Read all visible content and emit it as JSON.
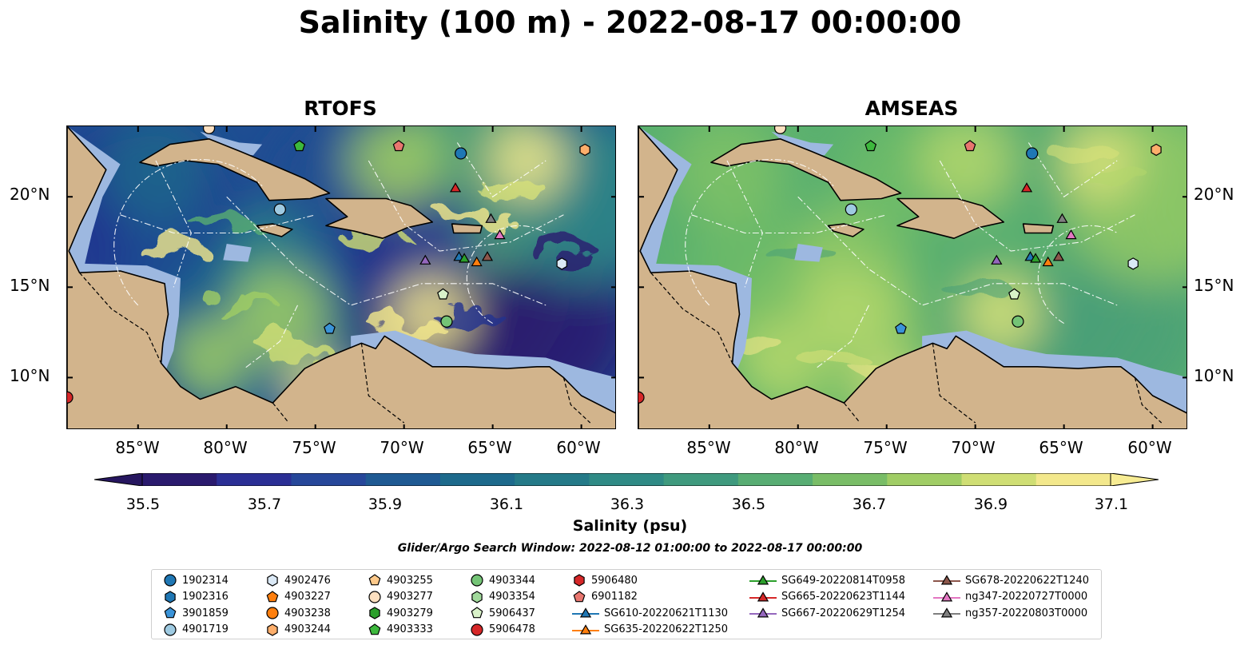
{
  "title": "Salinity (100 m) - 2022-08-17 00:00:00",
  "panels": [
    {
      "title": "RTOFS",
      "palette": "rtofs"
    },
    {
      "title": "AMSEAS",
      "palette": "amseas"
    }
  ],
  "lat_labels": [
    "20°N",
    "15°N",
    "10°N"
  ],
  "lon_labels": [
    "85°W",
    "80°W",
    "75°W",
    "70°W",
    "65°W",
    "60°W"
  ],
  "colorbar": {
    "label": "Salinity (psu)",
    "ticks": [
      "35.5",
      "35.7",
      "35.9",
      "36.1",
      "36.3",
      "36.5",
      "36.7",
      "36.9",
      "37.1"
    ],
    "colors": [
      "#2a1a6e",
      "#2b2f95",
      "#26479a",
      "#1f5a93",
      "#1d6a8c",
      "#247a88",
      "#2f8a85",
      "#3f9a7e",
      "#58ad73",
      "#79bd67",
      "#a0cd65",
      "#cfde74",
      "#f3e88c"
    ],
    "extend_low_color": "#26165f",
    "extend_high_color": "#f7ec93"
  },
  "search_window": "Glider/Argo Search Window: 2022-08-12 01:00:00 to 2022-08-17 00:00:00",
  "colors": {
    "land": "#d2b48c",
    "shallow_water": "#9db8e0"
  },
  "legend": [
    {
      "label": "1902314",
      "marker": "circle",
      "color": "#1f77b4"
    },
    {
      "label": "1902316",
      "marker": "hexagon",
      "color": "#1f77b4"
    },
    {
      "label": "3901859",
      "marker": "pentagon",
      "color": "#3a93d8"
    },
    {
      "label": "4901719",
      "marker": "circle",
      "color": "#9ecae1"
    },
    {
      "label": "4902476",
      "marker": "hexagon",
      "color": "#dbe9f6"
    },
    {
      "label": "4903227",
      "marker": "pentagon",
      "color": "#ff7f0e"
    },
    {
      "label": "4903238",
      "marker": "circle",
      "color": "#ff7f0e"
    },
    {
      "label": "4903244",
      "marker": "hexagon",
      "color": "#fdae6b"
    },
    {
      "label": "4903255",
      "marker": "pentagon",
      "color": "#fdc98a"
    },
    {
      "label": "4903277",
      "marker": "circle",
      "color": "#fde0c0"
    },
    {
      "label": "4903279",
      "marker": "hexagon",
      "color": "#2ca02c"
    },
    {
      "label": "4903333",
      "marker": "pentagon",
      "color": "#3db83d"
    },
    {
      "label": "4903344",
      "marker": "circle",
      "color": "#74c476"
    },
    {
      "label": "4903354",
      "marker": "hexagon",
      "color": "#a1d99b"
    },
    {
      "label": "5906437",
      "marker": "pentagon",
      "color": "#d9f2c9"
    },
    {
      "label": "5906478",
      "marker": "circle",
      "color": "#d62728"
    },
    {
      "label": "5906480",
      "marker": "hexagon",
      "color": "#d62728"
    },
    {
      "label": "6901182",
      "marker": "pentagon",
      "color": "#e8766f"
    },
    {
      "label": "SG610-20220621T1130",
      "marker": "triangle-line",
      "color": "#1f77b4"
    },
    {
      "label": "SG635-20220622T1250",
      "marker": "triangle-line",
      "color": "#ff7f0e"
    },
    {
      "label": "SG649-20220814T0958",
      "marker": "triangle-line",
      "color": "#2ca02c"
    },
    {
      "label": "SG665-20220623T1144",
      "marker": "triangle-line",
      "color": "#d62728"
    },
    {
      "label": "SG667-20220629T1254",
      "marker": "triangle-line",
      "color": "#9467bd"
    },
    {
      "label": "SG678-20220622T1240",
      "marker": "triangle-line",
      "color": "#8c564b"
    },
    {
      "label": "ng347-20220727T0000",
      "marker": "triangle-line",
      "color": "#e377c2"
    },
    {
      "label": "ng357-20220803T0000",
      "marker": "triangle-line",
      "color": "#7f7f7f"
    }
  ],
  "platforms": [
    {
      "label": "1902314",
      "marker": "circle",
      "color": "#1f77b4",
      "lon": -66.8,
      "lat": 22.4
    },
    {
      "label": "4901719",
      "marker": "circle",
      "color": "#9ecae1",
      "lon": -77.0,
      "lat": 19.3
    },
    {
      "label": "3901859",
      "marker": "pentagon",
      "color": "#3a93d8",
      "lon": -74.2,
      "lat": 12.7
    },
    {
      "label": "4903333",
      "marker": "pentagon",
      "color": "#3db83d",
      "lon": -75.9,
      "lat": 22.8
    },
    {
      "label": "6901182",
      "marker": "pentagon",
      "color": "#e8766f",
      "lon": -70.3,
      "lat": 22.8
    },
    {
      "label": "4903277",
      "marker": "circle",
      "color": "#fde0c0",
      "lon": -81.0,
      "lat": 23.8
    },
    {
      "label": "4903244",
      "marker": "hexagon",
      "color": "#fdae6b",
      "lon": -59.8,
      "lat": 22.6
    },
    {
      "label": "5906437",
      "marker": "pentagon",
      "color": "#d9f2c9",
      "lon": -67.8,
      "lat": 14.6
    },
    {
      "label": "4903344",
      "marker": "circle",
      "color": "#74c476",
      "lon": -67.6,
      "lat": 13.1
    },
    {
      "label": "5906478",
      "marker": "circle",
      "color": "#d62728",
      "lon": -89.0,
      "lat": 8.9
    },
    {
      "label": "4902476",
      "marker": "hexagon",
      "color": "#dbe9f6",
      "lon": -61.1,
      "lat": 16.3
    },
    {
      "label": "SG610-20220621T1130",
      "marker": "triangle",
      "color": "#1f77b4",
      "lon": -66.9,
      "lat": 16.7
    },
    {
      "label": "SG635-20220622T1250",
      "marker": "triangle",
      "color": "#ff7f0e",
      "lon": -65.9,
      "lat": 16.4
    },
    {
      "label": "SG649-20220814T0958",
      "marker": "triangle",
      "color": "#2ca02c",
      "lon": -66.6,
      "lat": 16.6
    },
    {
      "label": "SG665-20220623T1144",
      "marker": "triangle",
      "color": "#d62728",
      "lon": -67.1,
      "lat": 20.5
    },
    {
      "label": "SG667-20220629T1254",
      "marker": "triangle",
      "color": "#9467bd",
      "lon": -68.8,
      "lat": 16.5
    },
    {
      "label": "SG678-20220622T1240",
      "marker": "triangle",
      "color": "#8c564b",
      "lon": -65.3,
      "lat": 16.7
    },
    {
      "label": "ng347-20220727T0000",
      "marker": "triangle",
      "color": "#e377c2",
      "lon": -64.6,
      "lat": 17.9
    },
    {
      "label": "ng357-20220803T0000",
      "marker": "triangle",
      "color": "#7f7f7f",
      "lon": -65.1,
      "lat": 18.8
    }
  ]
}
